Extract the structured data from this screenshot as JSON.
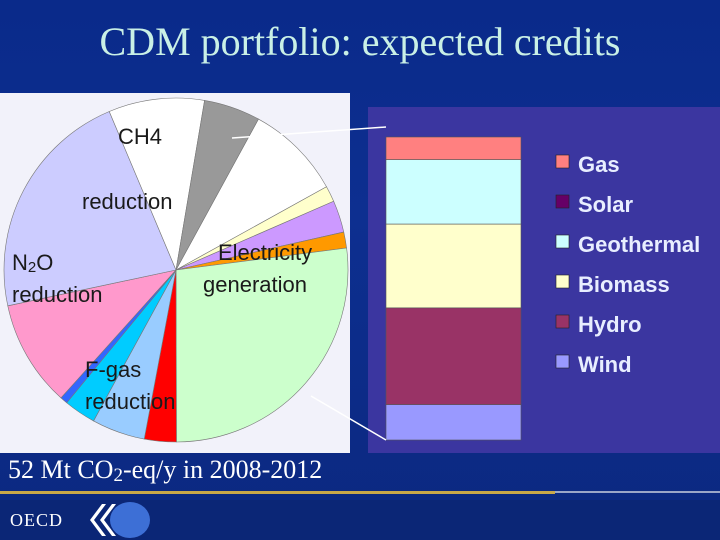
{
  "title": "CDM portfolio: expected credits",
  "footer": {
    "prefix": "52 Mt CO",
    "sub": "2",
    "suffix": "-eq/y in 2008-2012",
    "org": "OECD"
  },
  "chart_data": [
    {
      "type": "pie",
      "slices": [
        {
          "label": "CH4 reduction",
          "value": 9,
          "color": "#ffffff"
        },
        {
          "label": "",
          "value": 1.5,
          "color": "#ffffcc"
        },
        {
          "label": "",
          "value": 3,
          "color": "#cc99ff"
        },
        {
          "label": "",
          "value": 1.5,
          "color": "#ff9900"
        },
        {
          "label": "Electricity generation",
          "value": 27,
          "color": "#ccffcc"
        },
        {
          "label": "",
          "value": 3,
          "color": "#ff0000"
        },
        {
          "label": "",
          "value": 5,
          "color": "#99ccff"
        },
        {
          "label": "",
          "value": 3,
          "color": "#00ccff"
        },
        {
          "label": "",
          "value": 0.7,
          "color": "#3366ff"
        },
        {
          "label": "F-gas reduction",
          "value": 10,
          "color": "#ff99cc"
        },
        {
          "label": "N2O reduction",
          "value": 22,
          "color": "#ccccff"
        },
        {
          "label": "",
          "value": 9,
          "color": "#ffffff"
        },
        {
          "label": "",
          "value": 5.3,
          "color": "#999999"
        }
      ],
      "labels": {
        "ch4_line1": "CH4",
        "ch4_line2": "reduction",
        "n2o_prefix": "N",
        "n2o_sub": "2",
        "n2o_suffix": "O",
        "n2o_line2": "reduction",
        "elec_line1": "Electricity",
        "elec_line2": "generation",
        "fgas_line1": "F-gas",
        "fgas_line2": "reduction"
      }
    },
    {
      "type": "bar",
      "stacked": true,
      "categories": [
        "Electricity generation"
      ],
      "series": [
        {
          "name": "Wind",
          "value": 11,
          "color": "#9999ff"
        },
        {
          "name": "Hydro",
          "value": 30,
          "color": "#993366"
        },
        {
          "name": "Biomass",
          "value": 26,
          "color": "#ffffcc"
        },
        {
          "name": "Geothermal",
          "value": 20,
          "color": "#ccffff"
        },
        {
          "name": "Solar",
          "value": 0,
          "color": "#660066"
        },
        {
          "name": "Gas",
          "value": 7,
          "color": "#ff8080"
        }
      ],
      "legend_order": [
        "Gas",
        "Solar",
        "Geothermal",
        "Biomass",
        "Hydro",
        "Wind"
      ],
      "legend_position": "right"
    }
  ]
}
